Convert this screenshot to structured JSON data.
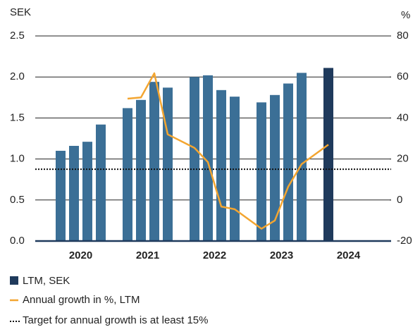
{
  "chart_data": {
    "type": "bar_line",
    "y_label": "SEK",
    "y2_label": "%",
    "ylim": [
      0,
      2.5
    ],
    "yticks": [
      {
        "value": 0,
        "label": "0.0"
      },
      0.5,
      {
        "value": 1,
        "label": "1.0"
      },
      1.5,
      {
        "value": 2,
        "label": "2.0"
      },
      2.5
    ],
    "y2lim": [
      -20,
      80
    ],
    "y2ticks": [
      -20,
      0,
      20,
      40,
      60,
      80
    ],
    "grid": true,
    "groups": [
      {
        "label": "2020",
        "values": [
          1.1,
          1.16,
          1.21,
          1.42
        ],
        "growth": [
          null,
          null,
          null,
          null
        ]
      },
      {
        "label": "2021",
        "values": [
          1.62,
          1.72,
          1.94,
          1.87
        ],
        "growth": [
          49.4,
          50,
          61.8,
          32
        ]
      },
      {
        "label": "2022",
        "values": [
          2.0,
          2.02,
          1.84,
          1.76
        ],
        "growth": [
          25.4,
          18.5,
          -3.2,
          -4.5
        ]
      },
      {
        "label": "2023",
        "values": [
          1.69,
          1.78,
          1.92,
          2.05
        ],
        "growth": [
          -14,
          -10,
          6.5,
          17.5
        ]
      },
      {
        "label": "2024",
        "values": [
          2.11
        ],
        "growth": [
          27
        ]
      }
    ],
    "bar_series": {
      "name": "LTM, SEK",
      "color": "#3b6f96",
      "highlight_color": "#1f3a5c"
    },
    "line_series": {
      "name": "Annual growth in %, LTM",
      "color": "#f3a530",
      "axis": "y2"
    },
    "target": {
      "name": "Target for annual growth is at least 15%",
      "value": 15,
      "color": "#111111",
      "axis": "y2"
    }
  }
}
